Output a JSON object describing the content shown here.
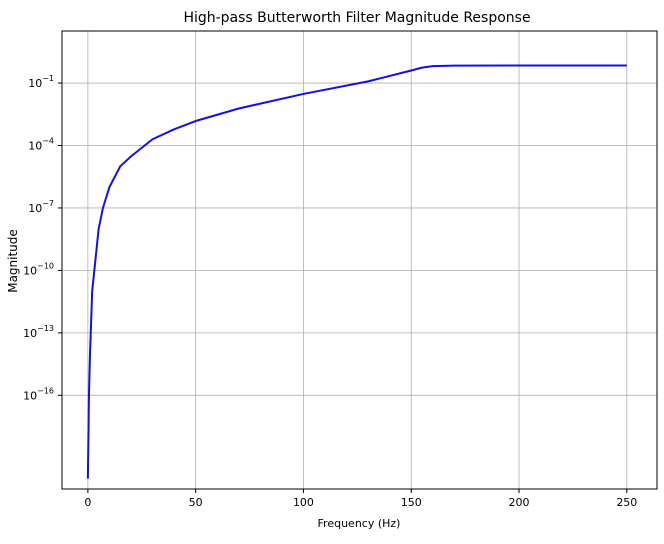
{
  "chart_data": {
    "type": "line",
    "title": "High-pass Butterworth Filter Magnitude Response",
    "xlabel": "Frequency (Hz)",
    "ylabel": "Magnitude",
    "xlim": [
      -12,
      264
    ],
    "ylim_log10": [
      -20.5,
      1.5
    ],
    "yscale": "log",
    "grid": true,
    "x_ticks": [
      {
        "value": 0,
        "label": "0"
      },
      {
        "value": 50,
        "label": "50"
      },
      {
        "value": 100,
        "label": "100"
      },
      {
        "value": 150,
        "label": "150"
      },
      {
        "value": 200,
        "label": "200"
      },
      {
        "value": 250,
        "label": "250"
      }
    ],
    "y_ticks": [
      {
        "exp": -16,
        "base": "10",
        "sup": "−16"
      },
      {
        "exp": -13,
        "base": "10",
        "sup": "−13"
      },
      {
        "exp": -10,
        "base": "10",
        "sup": "−10"
      },
      {
        "exp": -7,
        "base": "10",
        "sup": "−7"
      },
      {
        "exp": -4,
        "base": "10",
        "sup": "−4"
      },
      {
        "exp": -1,
        "base": "10",
        "sup": "−1"
      }
    ],
    "series": [
      {
        "color": "#1010ee",
        "x": [
          0,
          0.5,
          1,
          2,
          3,
          5,
          7,
          10,
          15,
          20,
          30,
          40,
          50,
          70,
          100,
          130,
          150,
          155,
          160,
          170,
          200,
          250
        ],
        "y": [
          1e-20,
          1e-16,
          1e-14,
          1e-11,
          1e-10,
          1e-08,
          1e-07,
          1e-06,
          1e-05,
          3e-05,
          0.0002,
          0.0006,
          0.0015,
          0.006,
          0.03,
          0.12,
          0.4,
          0.55,
          0.65,
          0.69,
          0.7,
          0.7
        ]
      }
    ]
  }
}
